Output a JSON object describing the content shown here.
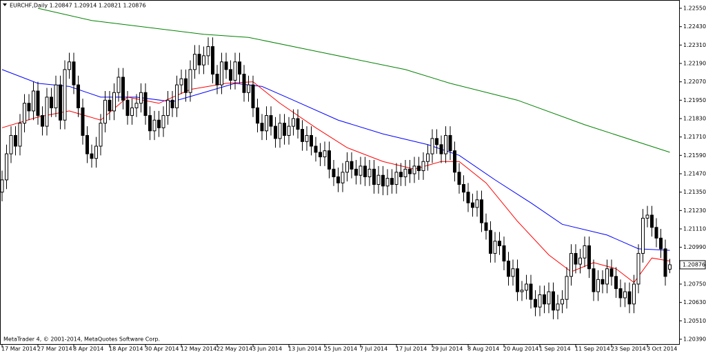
{
  "chart_data": {
    "type": "candlestick",
    "title": "EURCHF,Daily  1.20847 1.20914 1.20821 1.20876",
    "footer": "MetaTrader 4, © 2001-2014, MetaQuotes Software Corp.",
    "categories": [
      "17 Mar 2014",
      null,
      null,
      null,
      null,
      null,
      null,
      null,
      "27 Mar 2014",
      null,
      null,
      null,
      null,
      null,
      null,
      null,
      "8 Apr 2014",
      null,
      null,
      null,
      null,
      null,
      null,
      null,
      "18 Apr 2014",
      null,
      null,
      null,
      null,
      null,
      null,
      null,
      "30 Apr 2014",
      null,
      null,
      null,
      null,
      null,
      null,
      null,
      "12 May 2014",
      null,
      null,
      null,
      null,
      null,
      null,
      null,
      "22 May 2014",
      null,
      null,
      null,
      null,
      null,
      null,
      null,
      "3 Jun 2014",
      null,
      null,
      null,
      null,
      null,
      null,
      null,
      "13 Jun 2014",
      null,
      null,
      null,
      null,
      null,
      null,
      null,
      "25 Jun 2014",
      null,
      null,
      null,
      null,
      null,
      null,
      null,
      "7 Jul 2014",
      null,
      null,
      null,
      null,
      null,
      null,
      null,
      "17 Jul 2014",
      null,
      null,
      null,
      null,
      null,
      null,
      null,
      "29 Jul 2014",
      null,
      null,
      null,
      null,
      null,
      null,
      null,
      "8 Aug 2014",
      null,
      null,
      null,
      null,
      null,
      null,
      null,
      "20 Aug 2014",
      null,
      null,
      null,
      null,
      null,
      null,
      null,
      "1 Sep 2014",
      null,
      null,
      null,
      null,
      null,
      null,
      null,
      "11 Sep 2014",
      null,
      null,
      null,
      null,
      null,
      null,
      null,
      "23 Sep 2014",
      null,
      null,
      null,
      null,
      null,
      null,
      null,
      "3 Oct 2014",
      null,
      null,
      null,
      null,
      null
    ],
    "open": [
      1.2135,
      1.2143,
      1.216,
      1.2172,
      1.2165,
      1.218,
      1.2193,
      1.2188,
      1.2201,
      1.2185,
      1.2178,
      1.2197,
      1.219,
      1.2205,
      1.2182,
      1.2215,
      1.222,
      1.2205,
      1.219,
      1.2172,
      1.216,
      1.2157,
      1.2165,
      1.218,
      1.2195,
      1.2188,
      1.22,
      1.221,
      1.2195,
      1.2185,
      1.219,
      1.2193,
      1.22,
      1.2185,
      1.2175,
      1.2182,
      1.2177,
      1.2185,
      1.2195,
      1.219,
      1.2205,
      1.2209,
      1.22,
      1.2215,
      1.2225,
      1.2218,
      1.2224,
      1.223,
      1.2212,
      1.2205,
      1.222,
      1.2215,
      1.2208,
      1.222,
      1.2212,
      1.22,
      1.2205,
      1.219,
      1.218,
      1.2175,
      1.2185,
      1.2178,
      1.217,
      1.218,
      1.2172,
      1.2178,
      1.2183,
      1.2176,
      1.2168,
      1.2172,
      1.2165,
      1.2161,
      1.2158,
      1.2162,
      1.215,
      1.2145,
      1.2141,
      1.2148,
      1.2155,
      1.215,
      1.2146,
      1.2152,
      1.2145,
      1.215,
      1.214,
      1.2146,
      1.2139,
      1.2144,
      1.214,
      1.2148,
      1.2145,
      1.215,
      1.2147,
      1.2152,
      1.2149,
      1.2155,
      1.216,
      1.217,
      1.2166,
      1.216,
      1.2172,
      1.2162,
      1.2148,
      1.214,
      1.2135,
      1.2128,
      1.2125,
      1.213,
      1.2115,
      1.211,
      1.2095,
      1.2103,
      1.21,
      1.209,
      1.208,
      1.2085,
      1.207,
      1.2071,
      1.2075,
      1.2065,
      1.206,
      1.2068,
      1.2062,
      1.207,
      1.2058,
      1.2062,
      1.2065,
      1.208,
      1.2095,
      1.2088,
      1.2092,
      1.21,
      1.2085,
      1.207,
      1.2078,
      1.2075,
      1.2085,
      1.208,
      1.2072,
      1.2066,
      1.207,
      1.2062,
      1.2075,
      1.2095,
      1.2118,
      1.212,
      1.2112,
      1.2105,
      1.2098,
      1.20847
    ],
    "high": [
      1.2149,
      1.2166,
      1.2178,
      1.2178,
      1.2186,
      1.2199,
      1.2199,
      1.2207,
      1.2207,
      1.2191,
      1.2203,
      1.2203,
      1.2211,
      1.2211,
      1.2221,
      1.2226,
      1.2226,
      1.2211,
      1.2196,
      1.2178,
      1.2166,
      1.2171,
      1.2186,
      1.2201,
      1.2201,
      1.2206,
      1.2216,
      1.2216,
      1.2201,
      1.2196,
      1.2199,
      1.2206,
      1.2206,
      1.2191,
      1.2188,
      1.2188,
      1.2191,
      1.2201,
      1.2201,
      1.2211,
      1.2215,
      1.2215,
      1.2221,
      1.2231,
      1.2231,
      1.223,
      1.2236,
      1.2236,
      1.2218,
      1.2226,
      1.2226,
      1.2221,
      1.2226,
      1.2226,
      1.2218,
      1.2211,
      1.2211,
      1.2196,
      1.2186,
      1.2191,
      1.2191,
      1.2184,
      1.2186,
      1.2186,
      1.2184,
      1.2189,
      1.2189,
      1.2182,
      1.2178,
      1.2178,
      1.2171,
      1.2167,
      1.2168,
      1.2168,
      1.2156,
      1.2151,
      1.2154,
      1.2161,
      1.2161,
      1.2156,
      1.2158,
      1.2158,
      1.2156,
      1.2156,
      1.2152,
      1.2152,
      1.215,
      1.215,
      1.2154,
      1.2154,
      1.2156,
      1.2156,
      1.2158,
      1.2158,
      1.2161,
      1.2166,
      1.2176,
      1.2176,
      1.2172,
      1.2178,
      1.2178,
      1.2168,
      1.2154,
      1.2146,
      1.2141,
      1.2134,
      1.2136,
      1.2136,
      1.2121,
      1.2116,
      1.2109,
      1.2109,
      1.2106,
      1.2096,
      1.2091,
      1.2091,
      1.2077,
      1.2081,
      1.2081,
      1.2071,
      1.2074,
      1.2074,
      1.2076,
      1.2076,
      1.2068,
      1.2071,
      1.2086,
      1.2101,
      1.2101,
      1.2098,
      1.2106,
      1.2106,
      1.2091,
      1.2084,
      1.2084,
      1.2091,
      1.2091,
      1.2086,
      1.2078,
      1.2076,
      1.2076,
      1.2081,
      1.2101,
      1.2124,
      1.2126,
      1.2126,
      1.2118,
      1.2111,
      1.2104,
      1.20914
    ],
    "low": [
      1.2129,
      1.2137,
      1.2154,
      1.2159,
      1.2159,
      1.2174,
      1.2182,
      1.2182,
      1.2179,
      1.2172,
      1.2172,
      1.2184,
      1.2184,
      1.2176,
      1.2176,
      1.2209,
      1.2199,
      1.2184,
      1.2166,
      1.2154,
      1.2151,
      1.2151,
      1.2159,
      1.2174,
      1.2182,
      1.2182,
      1.2194,
      1.2189,
      1.2179,
      1.2179,
      1.2184,
      1.2187,
      1.2179,
      1.2169,
      1.2169,
      1.2171,
      1.2171,
      1.2179,
      1.2184,
      1.2184,
      1.2199,
      1.2194,
      1.2194,
      1.2209,
      1.2212,
      1.2212,
      1.2218,
      1.2206,
      1.2199,
      1.2199,
      1.2209,
      1.2202,
      1.2202,
      1.2206,
      1.2194,
      1.2194,
      1.2184,
      1.2174,
      1.2169,
      1.2169,
      1.2172,
      1.2164,
      1.2164,
      1.2166,
      1.2166,
      1.2172,
      1.217,
      1.2162,
      1.2162,
      1.2159,
      1.2155,
      1.2152,
      1.2152,
      1.2144,
      1.2139,
      1.2135,
      1.2135,
      1.2142,
      1.2144,
      1.214,
      1.214,
      1.2139,
      1.2139,
      1.2134,
      1.2134,
      1.2133,
      1.2133,
      1.2134,
      1.2134,
      1.2139,
      1.2139,
      1.2141,
      1.2141,
      1.2143,
      1.2143,
      1.2149,
      1.2154,
      1.216,
      1.2154,
      1.2154,
      1.2156,
      1.2142,
      1.2134,
      1.2129,
      1.2122,
      1.2119,
      1.2119,
      1.2109,
      1.2104,
      1.2089,
      1.2089,
      1.2094,
      1.2084,
      1.2074,
      1.2074,
      1.2064,
      1.2064,
      1.2065,
      1.2059,
      1.2054,
      1.2054,
      1.2056,
      1.2056,
      1.2052,
      1.2052,
      1.2056,
      1.2059,
      1.2074,
      1.2082,
      1.2082,
      1.2086,
      1.2079,
      1.2064,
      1.2064,
      1.2069,
      1.2069,
      1.2074,
      1.2066,
      1.206,
      1.206,
      1.2056,
      1.2056,
      1.2069,
      1.2089,
      1.2112,
      1.2106,
      1.2099,
      1.2092,
      1.2074,
      1.20821
    ],
    "close": [
      1.2143,
      1.216,
      1.2172,
      1.2165,
      1.218,
      1.2193,
      1.2188,
      1.2201,
      1.2185,
      1.2178,
      1.2197,
      1.219,
      1.2205,
      1.2182,
      1.2215,
      1.222,
      1.2205,
      1.219,
      1.2172,
      1.216,
      1.2157,
      1.2165,
      1.218,
      1.2195,
      1.2188,
      1.22,
      1.221,
      1.2195,
      1.2185,
      1.219,
      1.2193,
      1.22,
      1.2185,
      1.2175,
      1.2182,
      1.2177,
      1.2185,
      1.2195,
      1.219,
      1.2205,
      1.2209,
      1.22,
      1.2215,
      1.2225,
      1.2218,
      1.2224,
      1.223,
      1.2212,
      1.2205,
      1.222,
      1.2215,
      1.2208,
      1.222,
      1.2212,
      1.22,
      1.2205,
      1.219,
      1.218,
      1.2175,
      1.2185,
      1.2178,
      1.217,
      1.218,
      1.2172,
      1.2178,
      1.2183,
      1.2176,
      1.2168,
      1.2172,
      1.2165,
      1.2161,
      1.2158,
      1.2162,
      1.215,
      1.2145,
      1.2141,
      1.2148,
      1.2155,
      1.215,
      1.2146,
      1.2152,
      1.2145,
      1.215,
      1.214,
      1.2146,
      1.2139,
      1.2144,
      1.214,
      1.2148,
      1.2145,
      1.215,
      1.2147,
      1.2152,
      1.2149,
      1.2155,
      1.216,
      1.217,
      1.2166,
      1.216,
      1.2172,
      1.2162,
      1.2148,
      1.214,
      1.2135,
      1.2128,
      1.2125,
      1.213,
      1.2115,
      1.211,
      1.2095,
      1.2103,
      1.21,
      1.209,
      1.208,
      1.2085,
      1.207,
      1.2071,
      1.2075,
      1.2065,
      1.206,
      1.2068,
      1.2062,
      1.207,
      1.2058,
      1.2062,
      1.2065,
      1.208,
      1.2095,
      1.2088,
      1.2092,
      1.21,
      1.2085,
      1.207,
      1.2078,
      1.2075,
      1.2085,
      1.208,
      1.2072,
      1.2066,
      1.207,
      1.2062,
      1.2075,
      1.2095,
      1.2118,
      1.212,
      1.2112,
      1.2105,
      1.2098,
      1.208,
      1.20876
    ],
    "indicators": [
      {
        "color": "#0000ff",
        "x": [
          0,
          8,
          15,
          22,
          30,
          38,
          45,
          52,
          58,
          65,
          75,
          85,
          95,
          102,
          110,
          118,
          125,
          135,
          142,
          149
        ],
        "values": [
          1.2215,
          1.2206,
          1.2204,
          1.2197,
          1.2197,
          1.2194,
          1.22,
          1.2206,
          1.2204,
          1.2195,
          1.2182,
          1.2173,
          1.2166,
          1.2159,
          1.2143,
          1.2128,
          1.2114,
          1.2107,
          1.2098,
          1.2097
        ]
      },
      {
        "color": "#ff0000",
        "x": [
          0,
          8,
          15,
          22,
          28,
          35,
          42,
          50,
          56,
          62,
          70,
          77,
          85,
          92,
          98,
          102,
          108,
          115,
          122,
          127,
          132,
          137,
          141,
          145,
          149
        ],
        "values": [
          1.2177,
          1.2184,
          1.2188,
          1.2182,
          1.2197,
          1.2193,
          1.2202,
          1.2206,
          1.2207,
          1.2193,
          1.2177,
          1.2164,
          1.2155,
          1.215,
          1.2155,
          1.2155,
          1.2141,
          1.2116,
          1.2094,
          1.2083,
          1.2089,
          1.2085,
          1.2076,
          1.2092,
          1.209
        ]
      },
      {
        "color": "#008000",
        "x": [
          8,
          20,
          45,
          55,
          70,
          90,
          100,
          115,
          130,
          149
        ],
        "values": [
          1.2255,
          1.2247,
          1.2238,
          1.2236,
          1.2227,
          1.2215,
          1.2206,
          1.2195,
          1.2179,
          1.2161
        ]
      }
    ],
    "last_price": {
      "value": 1.20876,
      "label": "1.20876"
    },
    "ylim": [
      1.20354,
      1.22604
    ],
    "yticks": [
      {
        "value": 1.2255,
        "label": "1.22550"
      },
      {
        "value": 1.2243,
        "label": "1.22430"
      },
      {
        "value": 1.2231,
        "label": "1.22310"
      },
      {
        "value": 1.2219,
        "label": "1.22190"
      },
      {
        "value": 1.2207,
        "label": "1.22070"
      },
      {
        "value": 1.2195,
        "label": "1.21950"
      },
      {
        "value": 1.2183,
        "label": "1.21830"
      },
      {
        "value": 1.2171,
        "label": "1.21710"
      },
      {
        "value": 1.2159,
        "label": "1.21590"
      },
      {
        "value": 1.2147,
        "label": "1.21470"
      },
      {
        "value": 1.2135,
        "label": "1.21350"
      },
      {
        "value": 1.2123,
        "label": "1.21230"
      },
      {
        "value": 1.2111,
        "label": "1.21110"
      },
      {
        "value": 1.2099,
        "label": "1.20990"
      },
      {
        "value": 1.2075,
        "label": "1.20750"
      },
      {
        "value": 1.2063,
        "label": "1.20630"
      },
      {
        "value": 1.2051,
        "label": "1.20510"
      },
      {
        "value": 1.2039,
        "label": "1.20390"
      }
    ],
    "grid": false
  }
}
